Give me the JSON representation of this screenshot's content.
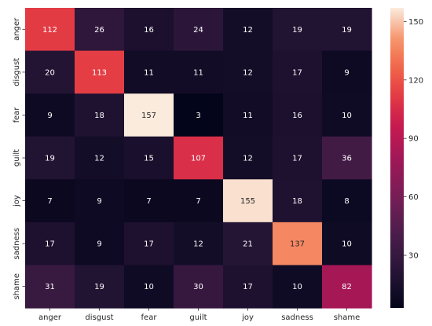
{
  "chart_data": {
    "type": "heatmap",
    "title": "",
    "xlabel": "",
    "ylabel": "",
    "x_categories": [
      "anger",
      "disgust",
      "fear",
      "guilt",
      "joy",
      "sadness",
      "shame"
    ],
    "y_categories": [
      "anger",
      "disgust",
      "fear",
      "guilt",
      "joy",
      "sadness",
      "shame"
    ],
    "values": [
      [
        112,
        26,
        16,
        24,
        12,
        19,
        19
      ],
      [
        20,
        113,
        11,
        11,
        12,
        17,
        9
      ],
      [
        9,
        18,
        157,
        3,
        11,
        16,
        10
      ],
      [
        19,
        12,
        15,
        107,
        12,
        17,
        36
      ],
      [
        7,
        9,
        7,
        7,
        155,
        18,
        8
      ],
      [
        17,
        9,
        17,
        12,
        21,
        137,
        10
      ],
      [
        31,
        19,
        10,
        30,
        17,
        10,
        82
      ]
    ],
    "colormap": "rocket",
    "value_range": [
      3,
      157
    ],
    "colorbar": {
      "ticks": [
        30,
        60,
        90,
        120,
        150
      ],
      "tick_labels": [
        "30",
        "60",
        "90",
        "120",
        "150"
      ]
    },
    "annotations": true,
    "grid": false,
    "legend": "colorbar-right"
  }
}
